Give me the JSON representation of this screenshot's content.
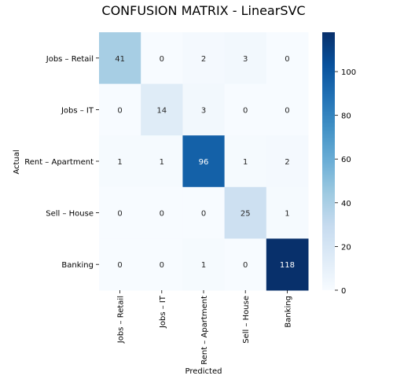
{
  "chart_data": {
    "type": "heatmap",
    "title": "CONFUSION MATRIX - LinearSVC",
    "xlabel": "Predicted",
    "ylabel": "Actual",
    "row_labels": [
      "Jobs – Retail",
      "Jobs – IT",
      "Rent – Apartment",
      "Sell – House",
      "Banking"
    ],
    "col_labels": [
      "Jobs – Retail",
      "Jobs – IT",
      "Rent – Apartment",
      "Sell – House",
      "Banking"
    ],
    "values": [
      [
        41,
        0,
        2,
        3,
        0
      ],
      [
        0,
        14,
        3,
        0,
        0
      ],
      [
        1,
        1,
        96,
        1,
        2
      ],
      [
        0,
        0,
        0,
        25,
        1
      ],
      [
        0,
        0,
        1,
        0,
        118
      ]
    ],
    "colormap": "Blues",
    "vmin": 0,
    "vmax": 118,
    "colorbar_ticks": [
      0,
      20,
      40,
      60,
      80,
      100
    ]
  }
}
